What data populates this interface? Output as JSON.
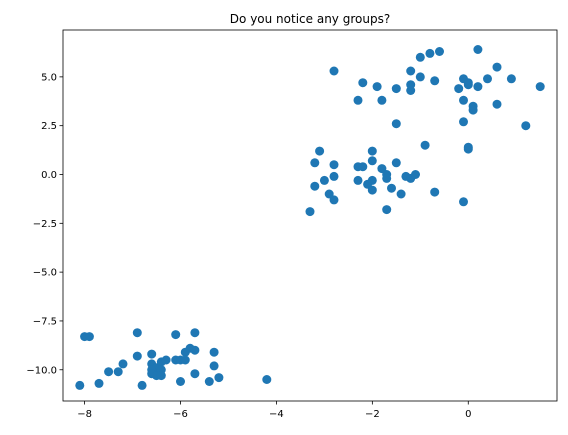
{
  "chart_data": {
    "type": "scatter",
    "title": "Do you notice any groups?",
    "xlabel": "",
    "ylabel": "",
    "xlim": [
      -8.45,
      1.85
    ],
    "ylim": [
      -11.6,
      7.4
    ],
    "xticks": [
      -8,
      -6,
      -4,
      -2,
      0
    ],
    "yticks": [
      -10.0,
      -7.5,
      -5.0,
      -2.5,
      0.0,
      2.5,
      5.0
    ],
    "xtick_labels": [
      "−8",
      "−6",
      "−4",
      "−2",
      "0"
    ],
    "ytick_labels": [
      "−10.0",
      "−7.5",
      "−5.0",
      "−2.5",
      "0.0",
      "2.5",
      "5.0"
    ],
    "grid": false,
    "legend": "none",
    "color": "#1f77b4",
    "points": [
      [
        -8.0,
        -8.3
      ],
      [
        -7.9,
        -8.3
      ],
      [
        -6.9,
        -8.1
      ],
      [
        -5.7,
        -8.1
      ],
      [
        -6.1,
        -8.2
      ],
      [
        -7.7,
        -10.7
      ],
      [
        -8.1,
        -10.8
      ],
      [
        -6.8,
        -10.8
      ],
      [
        -6.0,
        -10.6
      ],
      [
        -5.4,
        -10.6
      ],
      [
        -5.2,
        -10.4
      ],
      [
        -4.2,
        -10.5
      ],
      [
        -7.5,
        -10.1
      ],
      [
        -7.3,
        -10.1
      ],
      [
        -7.2,
        -9.7
      ],
      [
        -6.9,
        -9.3
      ],
      [
        -6.6,
        -9.7
      ],
      [
        -6.6,
        -9.2
      ],
      [
        -6.5,
        -9.9
      ],
      [
        -6.4,
        -9.6
      ],
      [
        -6.3,
        -9.5
      ],
      [
        -6.1,
        -9.5
      ],
      [
        -6.0,
        -9.5
      ],
      [
        -5.9,
        -9.1
      ],
      [
        -5.8,
        -8.9
      ],
      [
        -5.7,
        -9.0
      ],
      [
        -5.9,
        -9.5
      ],
      [
        -5.3,
        -9.1
      ],
      [
        -5.3,
        -9.8
      ],
      [
        -6.6,
        -10.0
      ],
      [
        -6.6,
        -10.2
      ],
      [
        -6.5,
        -10.3
      ],
      [
        -6.4,
        -10.0
      ],
      [
        -6.4,
        -10.3
      ],
      [
        -5.7,
        -10.2
      ],
      [
        -3.3,
        -1.9
      ],
      [
        -3.2,
        -0.6
      ],
      [
        -3.2,
        0.6
      ],
      [
        -3.1,
        1.2
      ],
      [
        -3.0,
        -0.3
      ],
      [
        -2.9,
        -1.0
      ],
      [
        -2.8,
        -1.3
      ],
      [
        -2.8,
        0.5
      ],
      [
        -2.8,
        -0.1
      ],
      [
        -2.3,
        0.4
      ],
      [
        -2.3,
        -0.3
      ],
      [
        -2.2,
        0.4
      ],
      [
        -2.1,
        -0.5
      ],
      [
        -2.0,
        -0.3
      ],
      [
        -2.0,
        -0.8
      ],
      [
        -2.0,
        0.7
      ],
      [
        -2.0,
        1.2
      ],
      [
        -1.8,
        0.3
      ],
      [
        -1.7,
        0.0
      ],
      [
        -1.7,
        -0.2
      ],
      [
        -1.7,
        -1.8
      ],
      [
        -1.6,
        -0.7
      ],
      [
        -1.5,
        0.6
      ],
      [
        -1.4,
        -1.0
      ],
      [
        -1.3,
        -0.1
      ],
      [
        -1.2,
        -0.2
      ],
      [
        -1.1,
        0.0
      ],
      [
        -0.7,
        -0.9
      ],
      [
        -0.9,
        1.5
      ],
      [
        -0.1,
        -1.4
      ],
      [
        0.0,
        1.3
      ],
      [
        0.0,
        1.4
      ],
      [
        -0.1,
        2.7
      ],
      [
        -1.5,
        2.6
      ],
      [
        -2.8,
        5.3
      ],
      [
        -2.3,
        3.8
      ],
      [
        -2.2,
        4.7
      ],
      [
        -1.9,
        4.5
      ],
      [
        -1.8,
        3.8
      ],
      [
        -1.5,
        4.4
      ],
      [
        -1.2,
        4.3
      ],
      [
        -1.2,
        4.6
      ],
      [
        -1.2,
        5.3
      ],
      [
        -1.0,
        5.0
      ],
      [
        -1.0,
        6.0
      ],
      [
        -0.8,
        6.2
      ],
      [
        -0.7,
        4.8
      ],
      [
        -0.6,
        6.3
      ],
      [
        -0.2,
        4.4
      ],
      [
        -0.1,
        3.8
      ],
      [
        -0.1,
        4.9
      ],
      [
        0.0,
        4.6
      ],
      [
        0.0,
        4.7
      ],
      [
        0.1,
        3.5
      ],
      [
        0.1,
        3.3
      ],
      [
        0.2,
        4.5
      ],
      [
        0.2,
        6.4
      ],
      [
        0.4,
        4.9
      ],
      [
        0.6,
        3.6
      ],
      [
        0.6,
        5.5
      ],
      [
        0.9,
        4.9
      ],
      [
        1.2,
        2.5
      ],
      [
        1.5,
        4.5
      ]
    ]
  }
}
